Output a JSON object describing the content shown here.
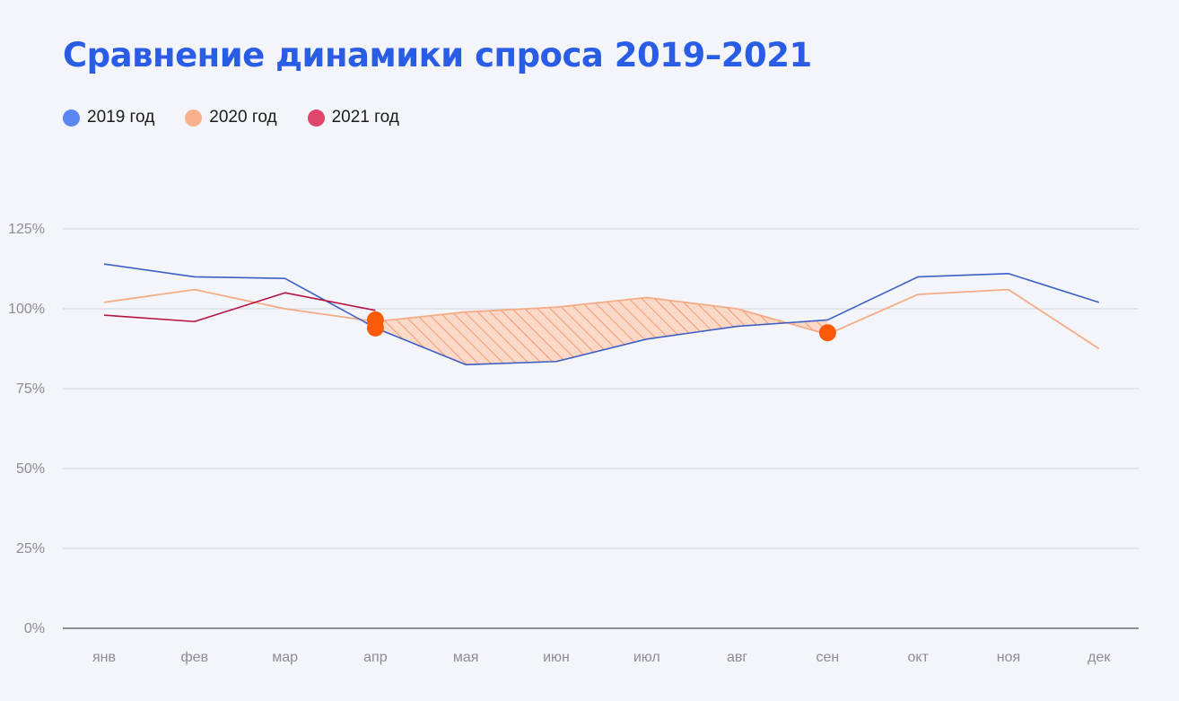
{
  "colors": {
    "background": "#f3f5fa",
    "title": "#2a5de6",
    "series_2019": "#3b5fc5",
    "series_2020": "#f5ac86",
    "series_2021": "#b5123f",
    "legend_2019": "#5b86f2",
    "legend_2020": "#f7b08d",
    "legend_2021": "#e0466b",
    "marker": "#fa5a0a",
    "hatch": "#f58f63",
    "hatch_fill": "#fbd6c3",
    "grid": "#cfd2da",
    "axis": "#222222"
  },
  "chart_data": {
    "type": "line",
    "title": "Сравнение динамики спроса 2019–2021",
    "xlabel": "",
    "ylabel": "",
    "categories": [
      "янв",
      "фев",
      "мар",
      "апр",
      "мая",
      "июн",
      "июл",
      "авг",
      "сен",
      "окт",
      "ноя",
      "дек"
    ],
    "y_ticks": [
      "0%",
      "25%",
      "50%",
      "75%",
      "100%",
      "125%"
    ],
    "ylim": [
      0,
      125
    ],
    "grid": true,
    "legend_position": "top-left",
    "series": [
      {
        "name": "2019 год",
        "values": [
          114,
          110,
          109.5,
          94,
          82.5,
          83.5,
          90.5,
          94.5,
          96.5,
          110,
          111,
          102
        ]
      },
      {
        "name": "2020 год",
        "values": [
          102,
          106,
          100,
          96,
          99,
          100.5,
          103.5,
          100,
          92,
          104.5,
          106,
          87.5
        ]
      },
      {
        "name": "2021 год",
        "values": [
          98,
          96,
          105,
          99.5,
          null,
          null,
          null,
          null,
          null,
          null,
          null,
          null
        ]
      }
    ],
    "highlighted_points": [
      {
        "x": "апр",
        "y": 96.5
      },
      {
        "x": "апр",
        "y": 94
      },
      {
        "x": "сен",
        "y": 92.5
      }
    ],
    "shaded_region": {
      "from": "апр",
      "to": "сен",
      "between": [
        "2020 год",
        "2019 год"
      ]
    }
  }
}
